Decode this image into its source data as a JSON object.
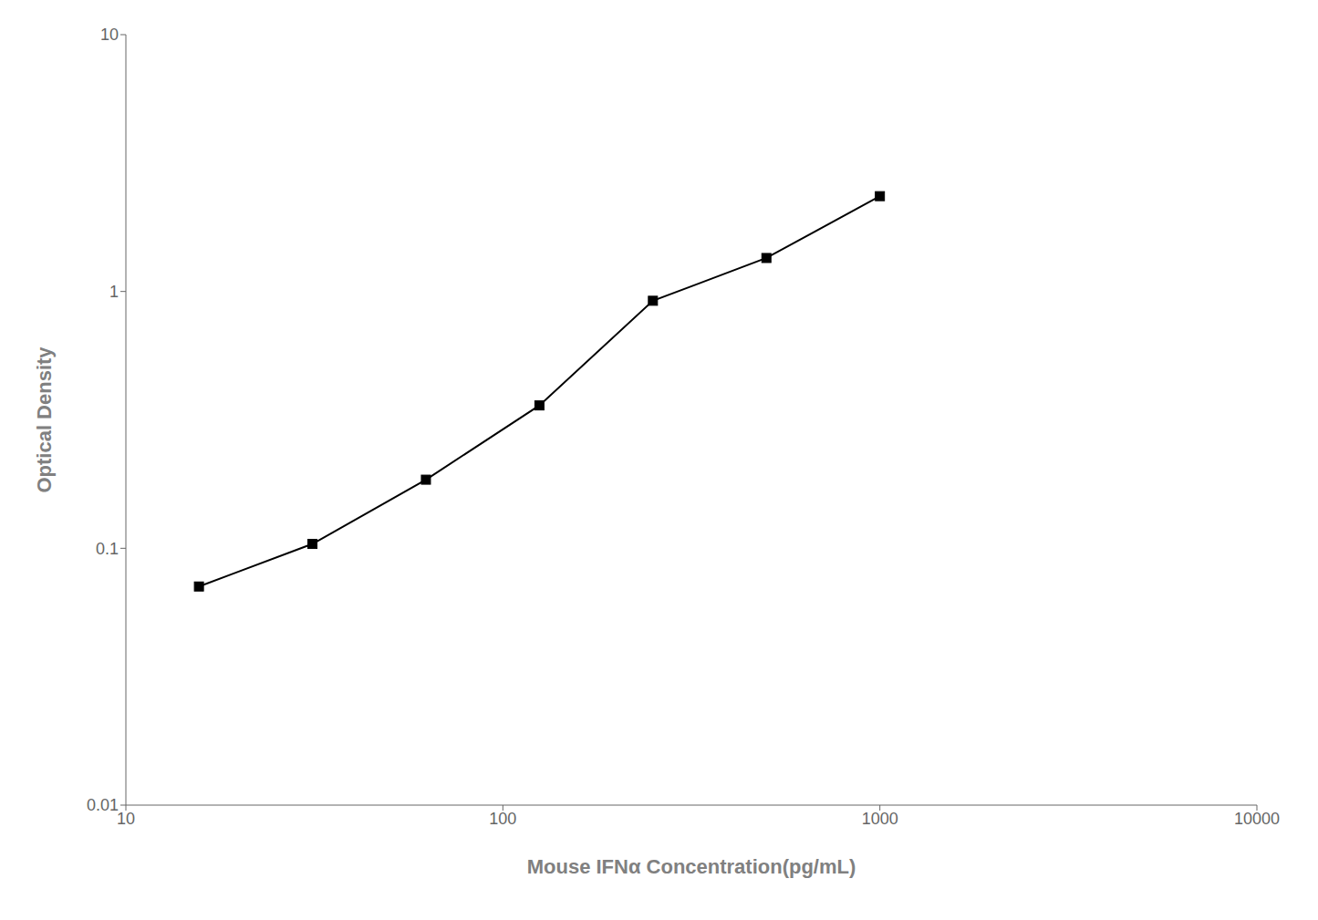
{
  "chart_data": {
    "type": "line",
    "x": [
      15.625,
      31.25,
      62.5,
      125,
      250,
      500,
      1000
    ],
    "values": [
      0.071,
      0.104,
      0.185,
      0.36,
      0.92,
      1.35,
      2.35
    ],
    "xlabel": "Mouse IFNα Concentration(pg/mL)",
    "ylabel": "Optical Density",
    "xlim": [
      10,
      10000
    ],
    "ylim": [
      0.01,
      10
    ],
    "xticks": [
      10,
      100,
      1000,
      10000
    ],
    "yticks": [
      0.01,
      0.1,
      1,
      10
    ],
    "log": true,
    "color": "#000000",
    "marker": "square",
    "grid": false
  }
}
